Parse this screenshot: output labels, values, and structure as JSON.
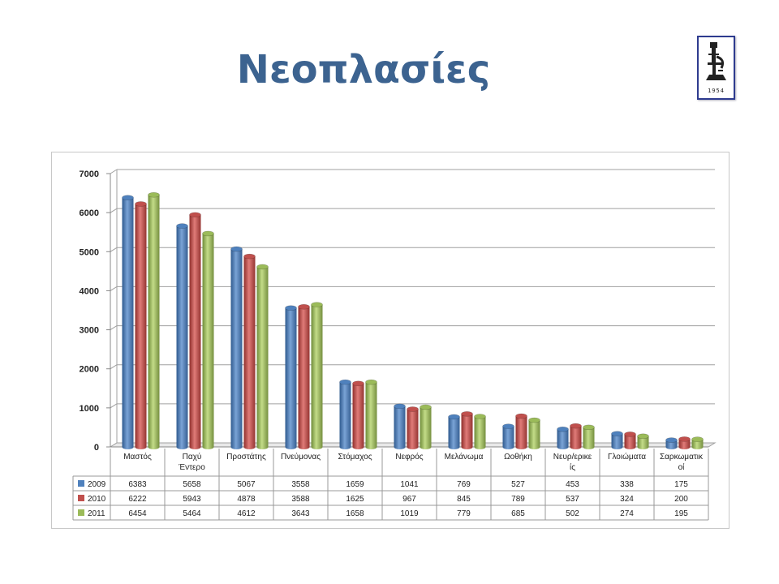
{
  "title": "Νεοπλασίες",
  "logo": {
    "year": "1954"
  },
  "chart_data": {
    "type": "bar",
    "title": "",
    "xlabel": "",
    "ylabel": "",
    "ylim": [
      0,
      7000
    ],
    "yticks": [
      0,
      1000,
      2000,
      3000,
      4000,
      5000,
      6000,
      7000
    ],
    "grid": true,
    "legend_placement": "data-table-left",
    "categories": [
      [
        "Μαστός"
      ],
      [
        "Παχύ",
        "Έντερο"
      ],
      [
        "Προστάτης"
      ],
      [
        "Πνεύμονας"
      ],
      [
        "Στόμαχος"
      ],
      [
        "Νεφρός"
      ],
      [
        "Μελάνωμα"
      ],
      [
        "Ωοθήκη"
      ],
      [
        "Νευρ/ερικε",
        "ίς"
      ],
      [
        "Γλοιώματα"
      ],
      [
        "Σαρκωματικ",
        "οί"
      ]
    ],
    "series": [
      {
        "name": "2009",
        "color": "#4f81bd",
        "values": [
          6383,
          5658,
          5067,
          3558,
          1659,
          1041,
          769,
          527,
          453,
          338,
          175
        ]
      },
      {
        "name": "2010",
        "color": "#c0504d",
        "values": [
          6222,
          5943,
          4878,
          3588,
          1625,
          967,
          845,
          789,
          537,
          324,
          200
        ]
      },
      {
        "name": "2011",
        "color": "#9bbb59",
        "values": [
          6454,
          5464,
          4612,
          3643,
          1658,
          1019,
          779,
          685,
          502,
          274,
          195
        ]
      }
    ]
  }
}
